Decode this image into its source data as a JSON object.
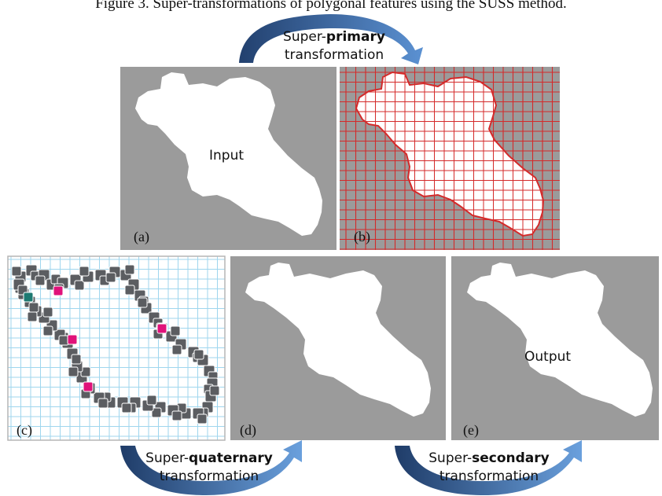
{
  "caption": "Figure 3. Super-transformations of polygonal features using the SUSS method.",
  "transformations": {
    "primary": {
      "prefix": "Super-",
      "emphasis": "primary",
      "suffix": "transformation"
    },
    "quaternary": {
      "prefix": "Super-",
      "emphasis": "quaternary",
      "suffix": "transformation"
    },
    "secondary": {
      "prefix": "Super-",
      "emphasis": "secondary",
      "suffix": "transformation"
    }
  },
  "panels": {
    "a": {
      "tag": "(a)",
      "text": "Input"
    },
    "b": {
      "tag": "(b)"
    },
    "c": {
      "tag": "(c)"
    },
    "d": {
      "tag": "(d)"
    },
    "e": {
      "tag": "(e)",
      "text": "Output"
    }
  },
  "colors": {
    "panel_gray": "#9b9b9b",
    "shape": "#ffffff",
    "grid_red": "#d42a2a",
    "grid_blue": "#9fd6ee",
    "ring_dark": "#5b5d61",
    "highlight_magenta": "#e0127a",
    "highlight_teal": "#1e7a72",
    "arrow_blue": "#3f72ac"
  }
}
